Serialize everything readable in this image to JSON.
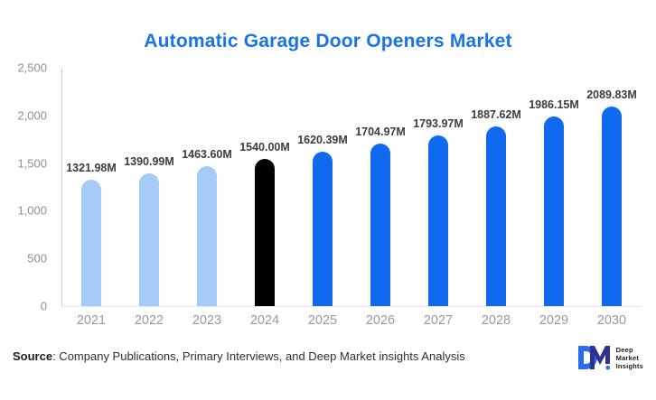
{
  "title": "Automatic Garage Door Openers Market",
  "chart_data": {
    "type": "bar",
    "title": "Automatic Garage Door Openers Market",
    "categories": [
      "2021",
      "2022",
      "2023",
      "2024",
      "2025",
      "2026",
      "2027",
      "2028",
      "2029",
      "2030"
    ],
    "values": [
      1321.98,
      1390.99,
      1463.6,
      1540.0,
      1620.39,
      1704.97,
      1793.97,
      1887.62,
      1986.15,
      2089.83
    ],
    "value_labels": [
      "1321.98M",
      "1390.99M",
      "1463.60M",
      "1540.00M",
      "1620.39M",
      "1704.97M",
      "1793.97M",
      "1887.62M",
      "1986.15M",
      "2089.83M"
    ],
    "bar_colors": [
      "#A5CBF7",
      "#A5CBF7",
      "#A5CBF7",
      "#000000",
      "#1169F0",
      "#1169F0",
      "#1169F0",
      "#1169F0",
      "#1169F0",
      "#1169F0"
    ],
    "xlabel": "",
    "ylabel": "",
    "ylim": [
      0,
      2500
    ],
    "yticks": [
      {
        "value": 0,
        "label": "0"
      },
      {
        "value": 500,
        "label": "500"
      },
      {
        "value": 1000,
        "label": "1,000"
      },
      {
        "value": 1500,
        "label": "1,500"
      },
      {
        "value": 2000,
        "label": "2,000"
      },
      {
        "value": 2500,
        "label": "2,500"
      }
    ],
    "grid": false,
    "legend_position": "none"
  },
  "source": {
    "prefix": "Source",
    "text": ": Company Publications, Primary Interviews, and Deep Market insights Analysis"
  },
  "logo": {
    "letter_d": "D",
    "letter_m": "M",
    "lines": [
      "Deep",
      "Market",
      "Insights"
    ],
    "d_color": "#2b6bf0",
    "m_color": "#2e3192"
  },
  "colors": {
    "title": "#1a73e8",
    "historical_bar": "#A5CBF7",
    "base_year_bar": "#000000",
    "forecast_bar": "#1169F0",
    "axis_label": "#8f8f8f",
    "data_label": "#3d3d3d"
  }
}
